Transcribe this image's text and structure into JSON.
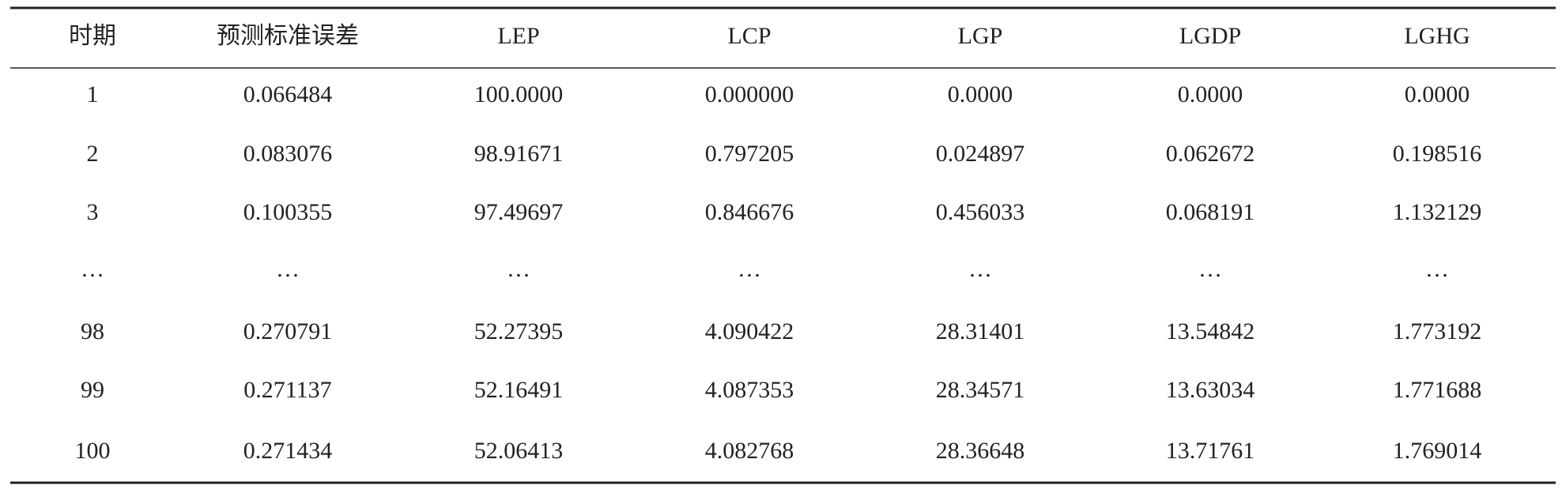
{
  "table": {
    "header": [
      "时期",
      "预测标准误差",
      "LEP",
      "LCP",
      "LGP",
      "LGDP",
      "LGHG"
    ],
    "rows": [
      [
        "1",
        "0.066484",
        "100.0000",
        "0.000000",
        "0.0000",
        "0.0000",
        "0.0000"
      ],
      [
        "2",
        "0.083076",
        "98.91671",
        "0.797205",
        "0.024897",
        "0.062672",
        "0.198516"
      ],
      [
        "3",
        "0.100355",
        "97.49697",
        "0.846676",
        "0.456033",
        "0.068191",
        "1.132129"
      ],
      [
        "…",
        "…",
        "…",
        "…",
        "…",
        "…",
        "…"
      ],
      [
        "98",
        "0.270791",
        "52.27395",
        "4.090422",
        "28.31401",
        "13.54842",
        "1.773192"
      ],
      [
        "99",
        "0.271137",
        "52.16491",
        "4.087353",
        "28.34571",
        "13.63034",
        "1.771688"
      ],
      [
        "100",
        "0.271434",
        "52.06413",
        "4.082768",
        "28.36648",
        "13.71761",
        "1.769014"
      ]
    ]
  }
}
